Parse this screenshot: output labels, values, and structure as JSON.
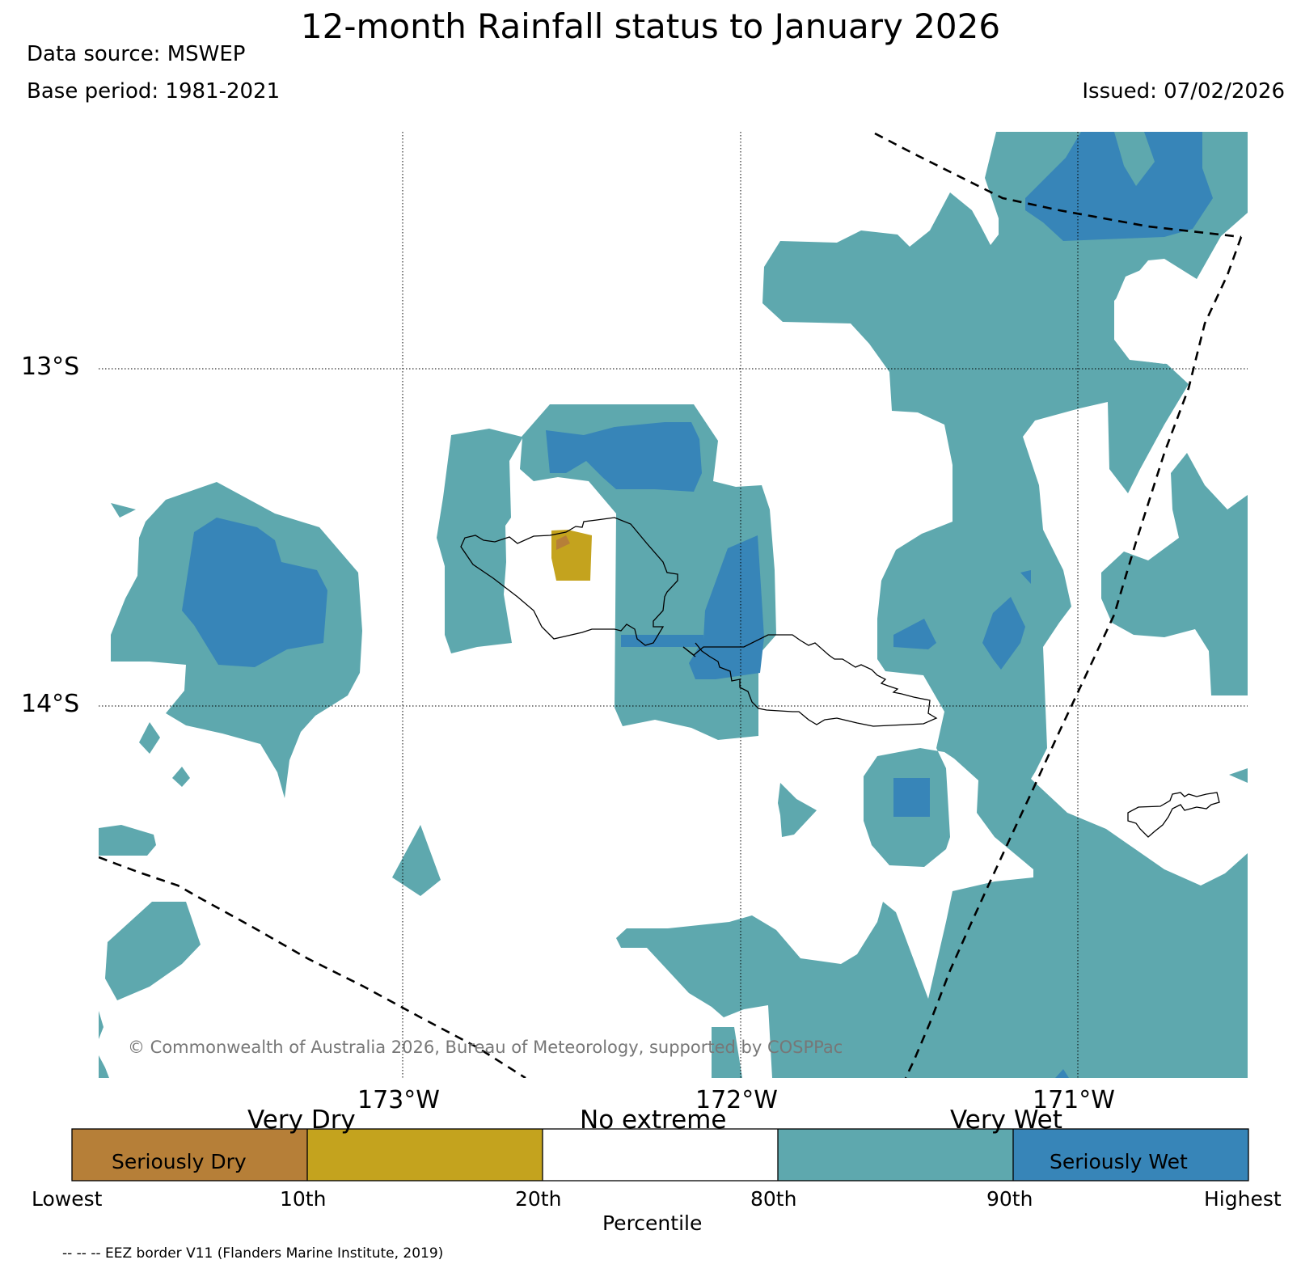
{
  "title": "12-month Rainfall status to January 2026",
  "data_source": "Data source: MSWEP",
  "base_period": "Base period: 1981-2021",
  "issued": "Issued: 07/02/2026",
  "map": {
    "lat_ticks": [
      "13°S",
      "14°S"
    ],
    "lon_ticks": [
      "173°W",
      "172°W",
      "171°W"
    ],
    "copyright": "© Commonwealth of Australia 2026, Bureau of Meteorology, supported by COSPPac",
    "colors": {
      "seriously_dry": "#b67f38",
      "very_dry": "#c4a31e",
      "no_extreme": "#ffffff",
      "very_wet": "#5ea8ae",
      "seriously_wet": "#3785b8"
    }
  },
  "legend": {
    "group_labels": [
      "Very Dry",
      "No extreme",
      "Very Wet"
    ],
    "inner_labels": [
      "Seriously Dry",
      "Seriously Wet"
    ],
    "ticks": [
      "Lowest",
      "10th",
      "20th",
      "80th",
      "90th",
      "Highest"
    ],
    "axis_label": "Percentile",
    "colors": [
      "#b67f38",
      "#c4a31e",
      "#ffffff",
      "#5ea8ae",
      "#3785b8"
    ]
  },
  "footnote": "-- -- -- EEZ border V11 (Flanders Marine Institute, 2019)"
}
